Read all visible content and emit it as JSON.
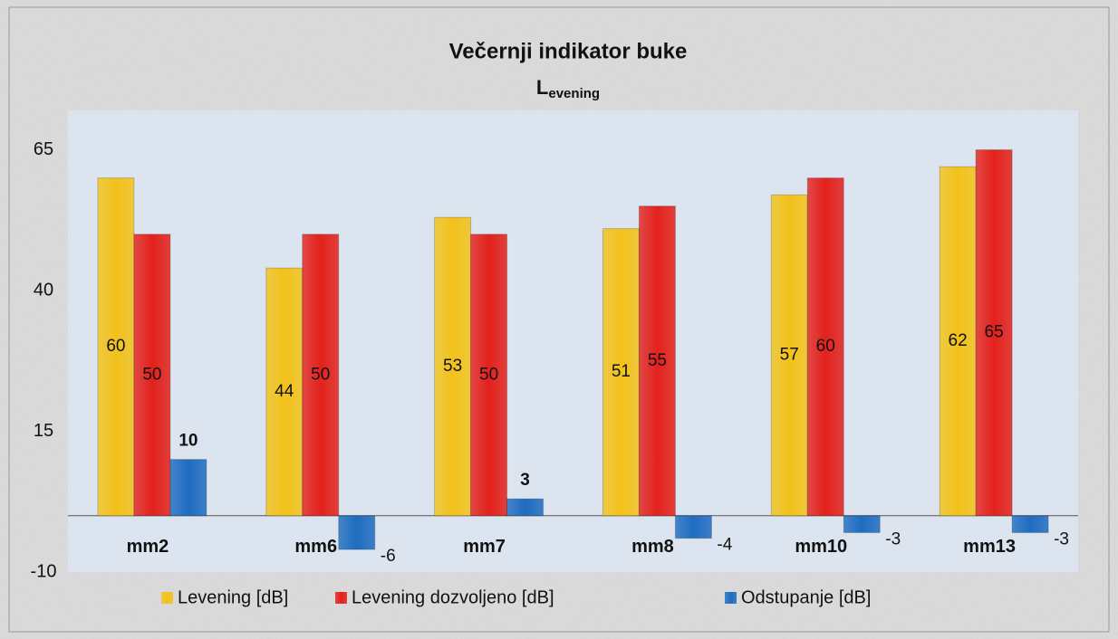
{
  "chart_data": {
    "type": "bar",
    "title": "Večernji indikator buke",
    "subtitle": {
      "main": "L",
      "sub": "evening"
    },
    "categories": [
      "mm2",
      "mm6",
      "mm7",
      "mm8",
      "mm10",
      "mm13"
    ],
    "series": [
      {
        "name": "Levening [dB]",
        "color": "#f2c21a",
        "values": [
          60,
          44,
          53,
          51,
          57,
          62
        ]
      },
      {
        "name": "Levening dozvoljeno [dB]",
        "color": "#e3211c",
        "values": [
          50,
          50,
          50,
          55,
          60,
          65
        ]
      },
      {
        "name": "Odstupanje [dB]",
        "color": "#1f6cc0",
        "values": [
          10,
          -6,
          3,
          -4,
          -3,
          -3
        ]
      }
    ],
    "ylim": [
      -10,
      72
    ],
    "yticks": [
      -10,
      15,
      40,
      65
    ],
    "grid": false,
    "legend": "bottom"
  }
}
